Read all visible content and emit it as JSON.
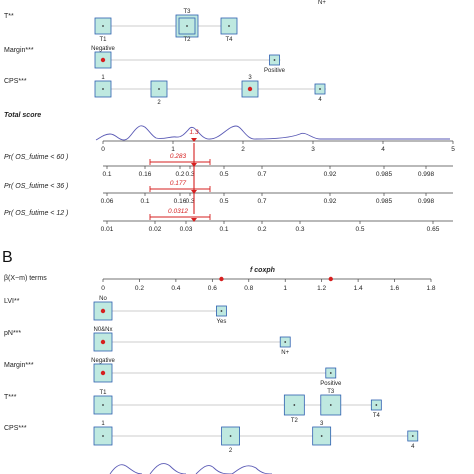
{
  "chart_data": [
    {
      "type": "nomogram",
      "panel": "A",
      "rows": [
        {
          "label": "T**",
          "categories": [
            {
              "name": "T1",
              "value": 0,
              "selected": false,
              "label_pos": "below"
            },
            {
              "name": "T3",
              "value": 1.2,
              "selected": true,
              "label_pos": "above"
            },
            {
              "name": "T2",
              "value": 1.2,
              "selected": false,
              "label_pos": "below"
            },
            {
              "name": "T4",
              "value": 1.8,
              "selected": false,
              "label_pos": "below"
            }
          ],
          "top_fragment": "N+"
        },
        {
          "label": "Margin***",
          "categories": [
            {
              "name": "Negative",
              "value": 0,
              "selected": true,
              "label_pos": "above"
            },
            {
              "name": "Positive",
              "value": 2.45,
              "selected": false,
              "label_pos": "below"
            }
          ]
        },
        {
          "label": "CPS***",
          "categories": [
            {
              "name": "1",
              "value": 0,
              "selected": false,
              "label_pos": "above"
            },
            {
              "name": "2",
              "value": 0.8,
              "selected": false,
              "label_pos": "below"
            },
            {
              "name": "3",
              "value": 2.1,
              "selected": true,
              "label_pos": "above"
            },
            {
              "name": "4",
              "value": 3.1,
              "selected": false,
              "label_pos": "below"
            }
          ]
        }
      ],
      "total_score": {
        "label": "Total score",
        "ticks": [
          "0",
          "1",
          "2",
          "3",
          "4",
          "5"
        ],
        "range": [
          0,
          5
        ],
        "marker_value": 1.3,
        "marker_label": "1.3"
      },
      "probabilities": [
        {
          "label": "Pr( OS_futime < 60 )",
          "ticks": [
            "0.1",
            "0.16",
            "0.2",
            "0.3",
            "0.5",
            "0.7",
            "0.92",
            "0.985",
            "0.998"
          ],
          "value_label": "0.283"
        },
        {
          "label": "Pr( OS_futime < 36 )",
          "ticks": [
            "0.06",
            "0.1",
            "0.16",
            "0.3",
            "0.5",
            "0.7",
            "0.92",
            "0.985",
            "0.998"
          ],
          "value_label": "0.177"
        },
        {
          "label": "Pr( OS_futime < 12 )",
          "ticks": [
            "0.01",
            "0.02",
            "0.03",
            "0.1",
            "0.2",
            "0.3",
            "0.5",
            "0.65"
          ],
          "value_label": "0.0312"
        }
      ]
    },
    {
      "type": "nomogram",
      "panel": "B",
      "model_title": "f coxph",
      "points_axis": {
        "label": "β(X−m) terms",
        "ticks": [
          "0",
          "0.2",
          "0.4",
          "0.6",
          "0.8",
          "1",
          "1.2",
          "1.4",
          "1.6",
          "1.8"
        ],
        "range": [
          0,
          1.8
        ],
        "red_points": [
          0.65,
          1.25
        ]
      },
      "rows": [
        {
          "label": "LVI**",
          "categories": [
            {
              "name": "No",
              "value": 0,
              "selected": true,
              "label_pos": "above"
            },
            {
              "name": "Yes",
              "value": 0.65,
              "selected": false,
              "label_pos": "below"
            }
          ]
        },
        {
          "label": "pN***",
          "categories": [
            {
              "name": "N0&Nx",
              "value": 0,
              "selected": true,
              "label_pos": "above"
            },
            {
              "name": "N+",
              "value": 1.0,
              "selected": false,
              "label_pos": "below"
            }
          ]
        },
        {
          "label": "Margin***",
          "categories": [
            {
              "name": "Negative",
              "value": 0,
              "selected": true,
              "label_pos": "above"
            },
            {
              "name": "Positive",
              "value": 1.25,
              "selected": false,
              "label_pos": "below"
            }
          ]
        },
        {
          "label": "T***",
          "categories": [
            {
              "name": "T1",
              "value": 0,
              "selected": false,
              "label_pos": "above"
            },
            {
              "name": "T2",
              "value": 1.05,
              "selected": false,
              "label_pos": "below"
            },
            {
              "name": "T3",
              "value": 1.25,
              "selected": false,
              "label_pos": "above"
            },
            {
              "name": "T4",
              "value": 1.5,
              "selected": false,
              "label_pos": "below"
            }
          ]
        },
        {
          "label": "CPS***",
          "categories": [
            {
              "name": "1",
              "value": 0,
              "selected": false,
              "label_pos": "above"
            },
            {
              "name": "2",
              "value": 0.7,
              "selected": false,
              "label_pos": "below"
            },
            {
              "name": "3",
              "value": 1.2,
              "selected": false,
              "label_pos": "above"
            },
            {
              "name": "4",
              "value": 1.7,
              "selected": false,
              "label_pos": "below"
            }
          ]
        }
      ]
    }
  ],
  "colors": {
    "box_fill": "#bfe9e0",
    "box_stroke": "#2d5fb0",
    "marker_red": "#d61f1f",
    "density_line": "#5a5ab5",
    "axis": "#444444"
  }
}
